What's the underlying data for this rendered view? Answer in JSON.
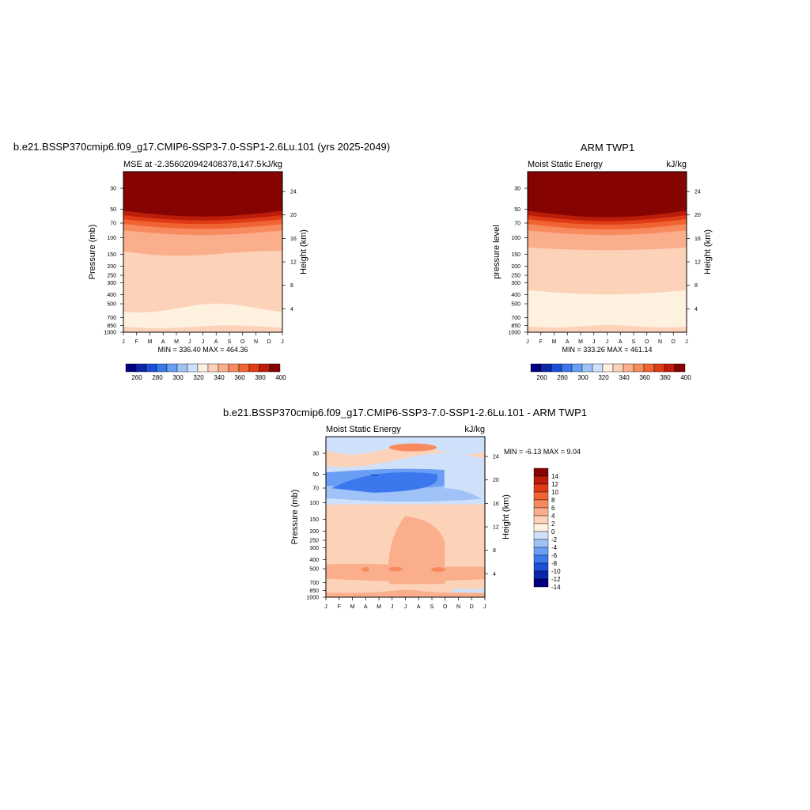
{
  "month_labels": [
    "J",
    "F",
    "M",
    "A",
    "M",
    "J",
    "J",
    "A",
    "S",
    "O",
    "N",
    "D",
    "J"
  ],
  "pressure_ticks": [
    30,
    50,
    70,
    100,
    150,
    200,
    250,
    300,
    400,
    500,
    700,
    850,
    1000
  ],
  "height_ticks": [
    4,
    8,
    12,
    16,
    20,
    24
  ],
  "palette": [
    "#00007f",
    "#0a27a8",
    "#1c4fd8",
    "#3b78ee",
    "#6a9ef4",
    "#9fc2f7",
    "#cfe1fa",
    "#fff1e0",
    "#fcd2b9",
    "#fbae8c",
    "#f88a5f",
    "#f06433",
    "#e03b17",
    "#bb1d0a",
    "#850300"
  ],
  "charts": [
    {
      "id": "model",
      "title": "b.e21.BSSP370cmip6.f09_g17.CMIP6-SSP3-7.0-SSP1-2.6Lu.101 (yrs 2025-2049)",
      "left_label": "MSE at -2.356020942408378,147.5",
      "right_label": "kJ/kg",
      "ylabel": "Pressure (mb)",
      "y2label": "Height (km)",
      "stats": "MIN = 336.40 MAX = 464.36",
      "colorbar_labels": [
        "260",
        "280",
        "300",
        "320",
        "340",
        "360",
        "380",
        "400"
      ]
    },
    {
      "id": "obs",
      "title": "ARM TWP1",
      "left_label": "Moist Static Energy",
      "right_label": "kJ/kg",
      "ylabel": "pressure level",
      "y2label": "Height (km)",
      "stats": "MIN = 333.26 MAX = 461.14",
      "colorbar_labels": [
        "260",
        "280",
        "300",
        "320",
        "340",
        "360",
        "380",
        "400"
      ]
    },
    {
      "id": "diff",
      "title": "b.e21.BSSP370cmip6.f09_g17.CMIP6-SSP3-7.0-SSP1-2.6Lu.101 - ARM TWP1",
      "left_label": "Moist Static Energy",
      "right_label": "kJ/kg",
      "ylabel": "Pressure (mb)",
      "y2label": "Height (km)",
      "stats": "MIN =  -6.13 MAX =   9.04",
      "colorbar_labels": [
        "14",
        "12",
        "10",
        "8",
        "6",
        "4",
        "2",
        "0",
        "-2",
        "-4",
        "-6",
        "-8",
        "-10",
        "-12",
        "-14"
      ]
    }
  ],
  "chart_data": [
    {
      "type": "heatmap",
      "title": "b.e21.BSSP370cmip6.f09_g17.CMIP6-SSP3-7.0-SSP1-2.6Lu.101 (yrs 2025-2049)",
      "subtitle": "MSE at -2.356020942408378,147.5",
      "units": "kJ/kg",
      "xlabel": "",
      "ylabel": "Pressure (mb)",
      "y2label": "Height (km)",
      "x_ticks": [
        "J",
        "F",
        "M",
        "A",
        "M",
        "J",
        "J",
        "A",
        "S",
        "O",
        "N",
        "D",
        "J"
      ],
      "y_ticks": [
        30,
        50,
        70,
        100,
        150,
        200,
        250,
        300,
        400,
        500,
        700,
        850,
        1000
      ],
      "y_scale": "log-reversed",
      "ylim": [
        1000,
        20
      ],
      "contour_levels": [
        260,
        270,
        280,
        290,
        300,
        310,
        320,
        330,
        340,
        350,
        360,
        370,
        380,
        390,
        400
      ],
      "min": 336.4,
      "max": 464.36,
      "colorbar": "horizontal-bottom"
    },
    {
      "type": "heatmap",
      "title": "ARM TWP1",
      "subtitle": "Moist Static Energy",
      "units": "kJ/kg",
      "xlabel": "",
      "ylabel": "pressure level",
      "y2label": "Height (km)",
      "x_ticks": [
        "J",
        "F",
        "M",
        "A",
        "M",
        "J",
        "J",
        "A",
        "S",
        "O",
        "N",
        "D",
        "J"
      ],
      "y_ticks": [
        30,
        50,
        70,
        100,
        150,
        200,
        250,
        300,
        400,
        500,
        700,
        850,
        1000
      ],
      "y_scale": "log-reversed",
      "ylim": [
        1000,
        20
      ],
      "contour_levels": [
        260,
        270,
        280,
        290,
        300,
        310,
        320,
        330,
        340,
        350,
        360,
        370,
        380,
        390,
        400
      ],
      "min": 333.26,
      "max": 461.14,
      "colorbar": "horizontal-bottom"
    },
    {
      "type": "heatmap",
      "title": "b.e21.BSSP370cmip6.f09_g17.CMIP6-SSP3-7.0-SSP1-2.6Lu.101 - ARM TWP1",
      "subtitle": "Moist Static Energy",
      "units": "kJ/kg",
      "xlabel": "",
      "ylabel": "Pressure (mb)",
      "y2label": "Height (km)",
      "x_ticks": [
        "J",
        "F",
        "M",
        "A",
        "M",
        "J",
        "J",
        "A",
        "S",
        "O",
        "N",
        "D",
        "J"
      ],
      "y_ticks": [
        30,
        50,
        70,
        100,
        150,
        200,
        250,
        300,
        400,
        500,
        700,
        850,
        1000
      ],
      "y_scale": "log-reversed",
      "ylim": [
        1000,
        20
      ],
      "contour_levels": [
        -14,
        -12,
        -10,
        -8,
        -6,
        -4,
        -2,
        0,
        2,
        4,
        6,
        8,
        10,
        12,
        14
      ],
      "min": -6.13,
      "max": 9.04,
      "colorbar": "vertical-right"
    }
  ]
}
